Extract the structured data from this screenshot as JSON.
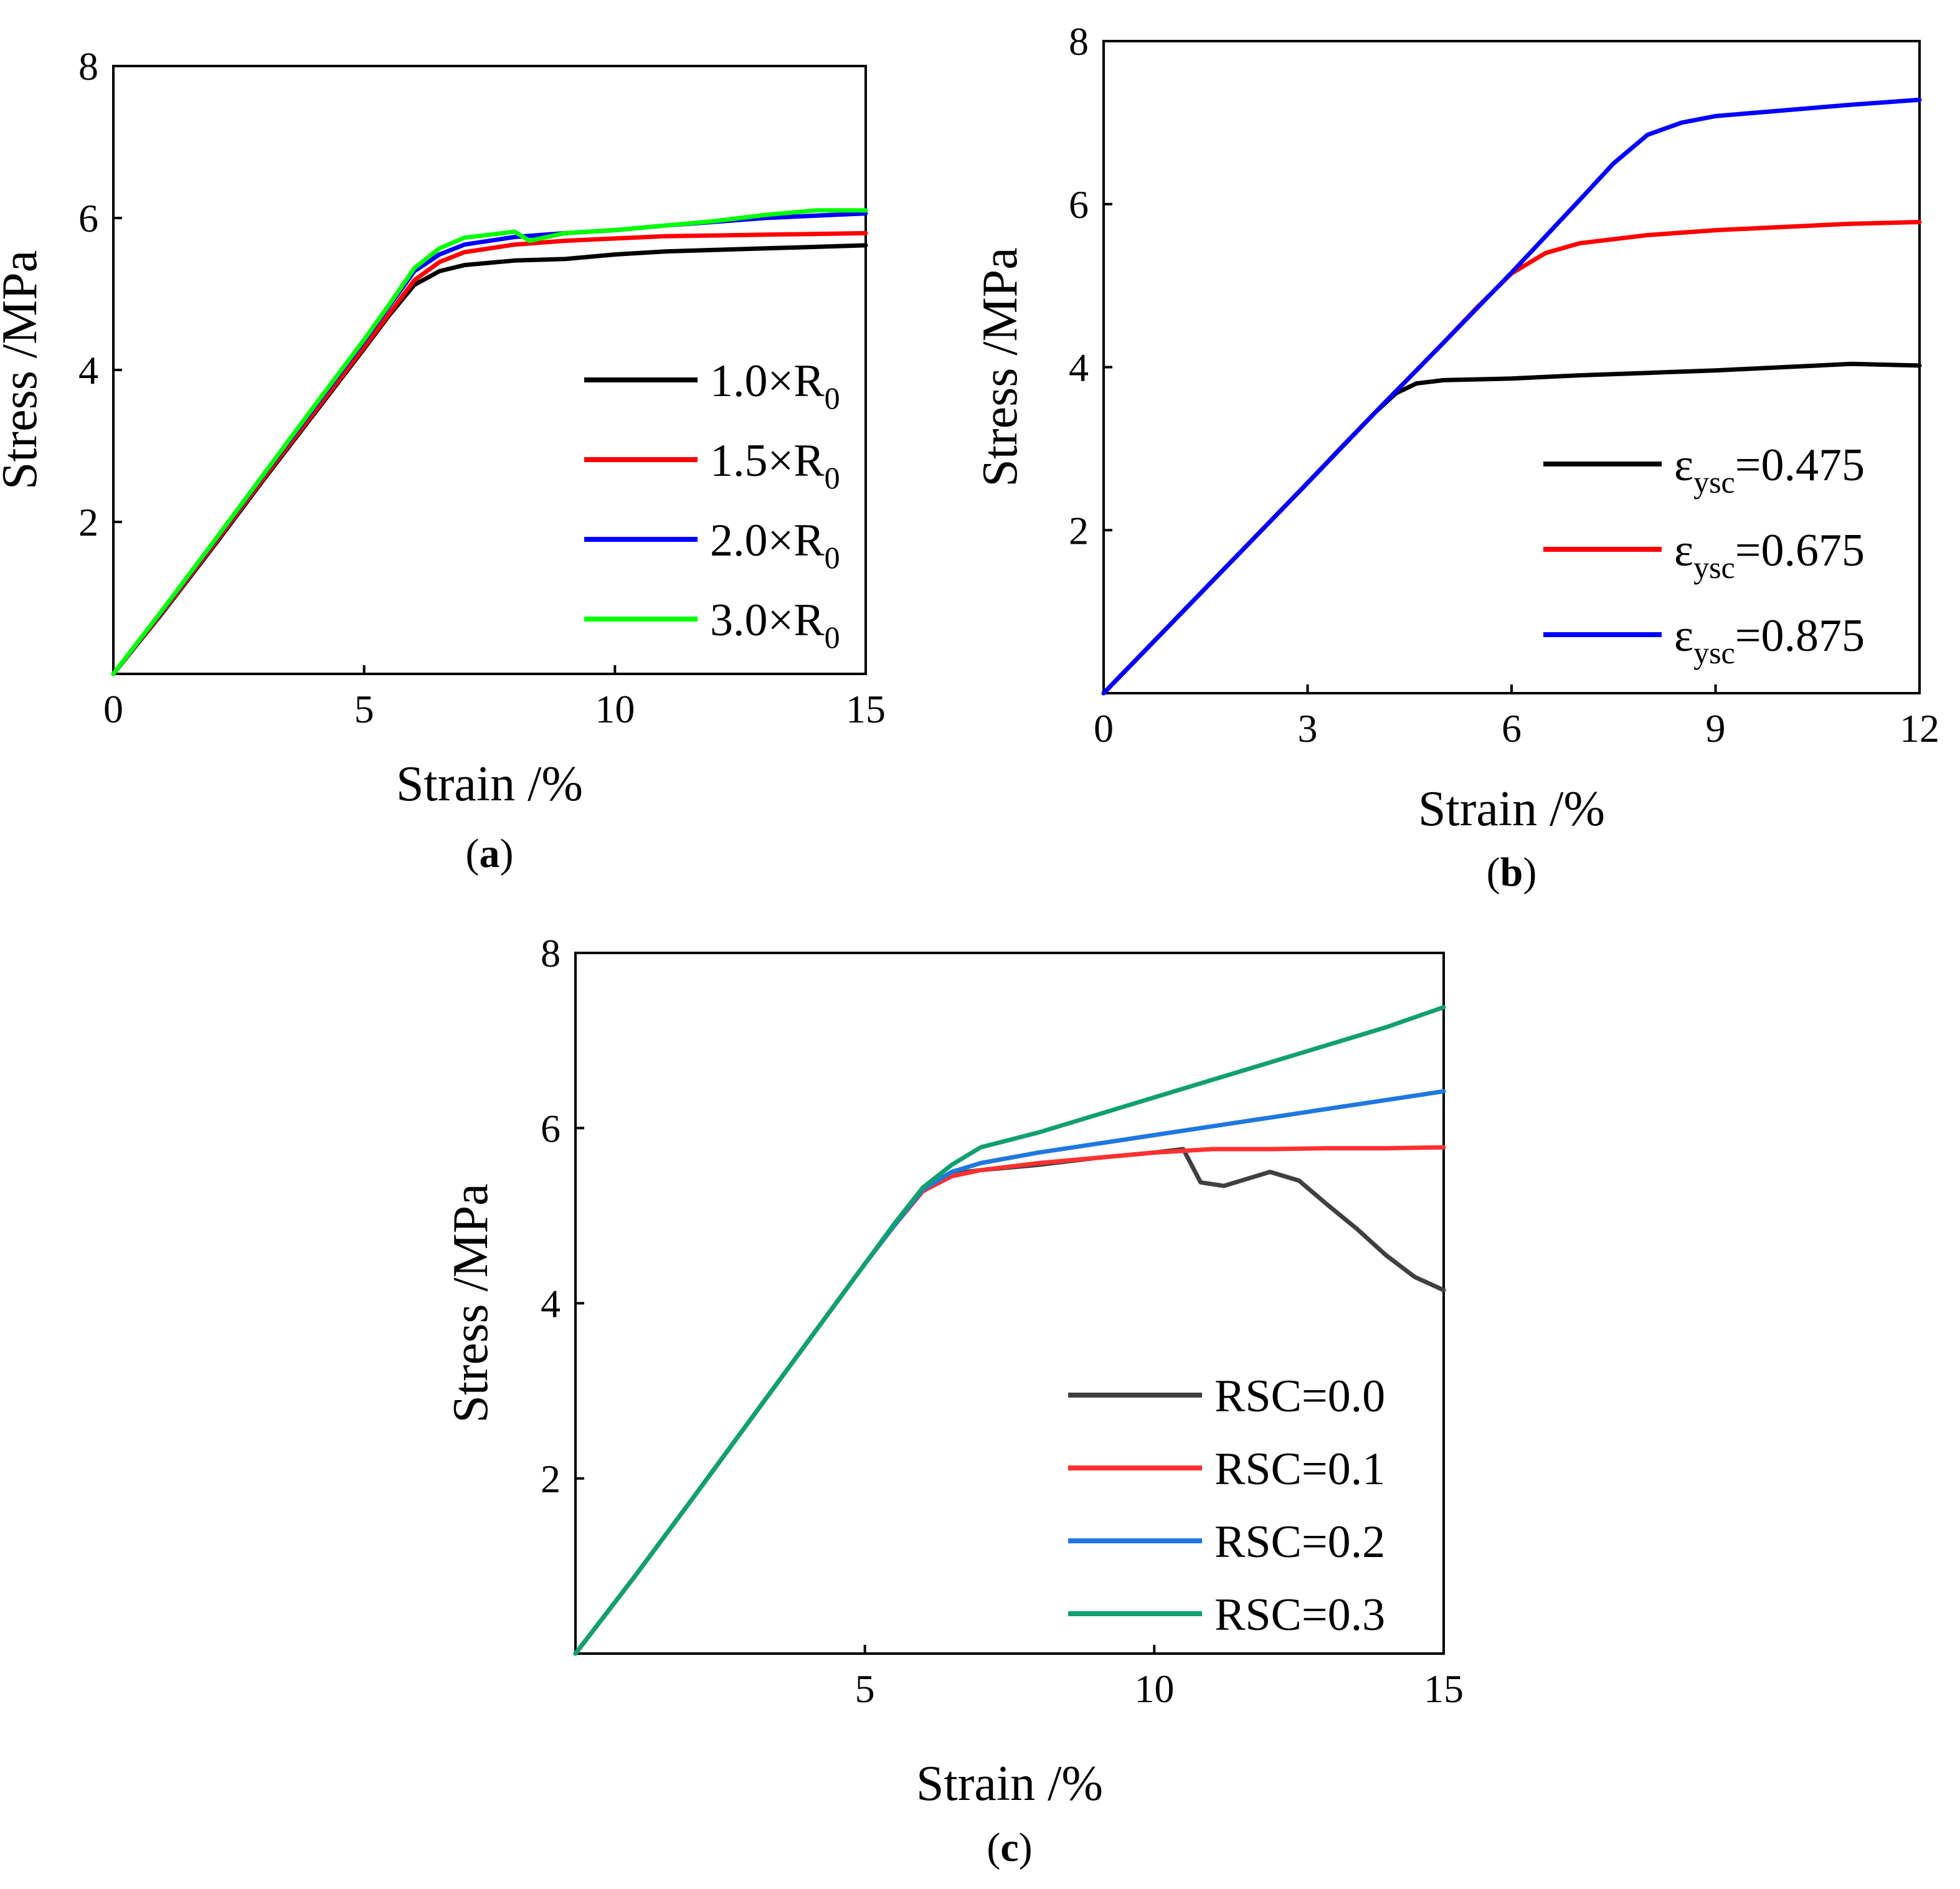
{
  "chart_data": [
    {
      "id": "a",
      "type": "line",
      "panel_label": "a",
      "xlabel": "Strain /%",
      "ylabel": "Stress /MPa",
      "xlim": [
        0,
        15
      ],
      "ylim": [
        0,
        8
      ],
      "xticks": [
        0,
        5,
        10,
        15
      ],
      "yticks": [
        2,
        4,
        6,
        8
      ],
      "legend_position": "bottom-right",
      "series": [
        {
          "name": "1.0×R",
          "sub": "0",
          "color": "#000000",
          "x": [
            0,
            1,
            2,
            3,
            4,
            5,
            5.5,
            6,
            6.5,
            7,
            8,
            9,
            10,
            11,
            12,
            13,
            14,
            15
          ],
          "y": [
            0,
            0.82,
            1.68,
            2.56,
            3.42,
            4.28,
            4.72,
            5.12,
            5.3,
            5.38,
            5.44,
            5.46,
            5.52,
            5.56,
            5.58,
            5.6,
            5.62,
            5.64
          ]
        },
        {
          "name": "1.5×R",
          "sub": "0",
          "color": "#ff0000",
          "x": [
            0,
            1,
            2,
            3,
            4,
            5,
            5.5,
            6,
            6.5,
            7,
            8,
            9,
            10,
            11,
            12,
            13,
            14,
            15
          ],
          "y": [
            0,
            0.83,
            1.7,
            2.58,
            3.44,
            4.3,
            4.74,
            5.18,
            5.42,
            5.55,
            5.65,
            5.7,
            5.73,
            5.76,
            5.77,
            5.78,
            5.79,
            5.8
          ]
        },
        {
          "name": "2.0×R",
          "sub": "0",
          "color": "#0000ff",
          "x": [
            0,
            1,
            2,
            3,
            4,
            5,
            5.5,
            6,
            6.5,
            7,
            8,
            9,
            10,
            11,
            12,
            13,
            14,
            15
          ],
          "y": [
            0,
            0.85,
            1.73,
            2.62,
            3.5,
            4.38,
            4.84,
            5.3,
            5.52,
            5.65,
            5.75,
            5.8,
            5.84,
            5.9,
            5.95,
            6.0,
            6.03,
            6.06
          ]
        },
        {
          "name": "3.0×R",
          "sub": "0",
          "color": "#00ff00",
          "x": [
            0,
            1,
            2,
            3,
            4,
            5,
            5.5,
            6,
            6.5,
            7,
            8,
            8.3,
            9,
            10,
            11,
            12,
            13,
            14,
            15
          ],
          "y": [
            0,
            0.86,
            1.74,
            2.63,
            3.52,
            4.4,
            4.86,
            5.34,
            5.6,
            5.74,
            5.82,
            5.7,
            5.8,
            5.84,
            5.9,
            5.96,
            6.04,
            6.1,
            6.1
          ]
        }
      ]
    },
    {
      "id": "b",
      "type": "line",
      "panel_label": "b",
      "xlabel": "Strain /%",
      "ylabel": "Stress /MPa",
      "xlim": [
        0,
        12
      ],
      "ylim": [
        0,
        8
      ],
      "xticks": [
        0,
        3,
        6,
        9,
        12
      ],
      "yticks": [
        2,
        4,
        6,
        8
      ],
      "legend_position": "bottom-right",
      "series": [
        {
          "name": "ε",
          "sub": "ysc",
          "suffix": "=0.475",
          "color": "#000000",
          "x": [
            0,
            1,
            2,
            3,
            3.5,
            4,
            4.3,
            4.6,
            5,
            6,
            7,
            8,
            9,
            10,
            11,
            12
          ],
          "y": [
            0,
            0.86,
            1.72,
            2.58,
            3.02,
            3.45,
            3.68,
            3.8,
            3.84,
            3.86,
            3.9,
            3.93,
            3.96,
            4.0,
            4.04,
            4.02
          ]
        },
        {
          "name": "ε",
          "sub": "ysc",
          "suffix": "=0.675",
          "color": "#ff0000",
          "x": [
            0,
            1,
            2,
            3,
            4,
            5,
            5.5,
            6,
            6.5,
            7,
            8,
            9,
            10,
            11,
            12
          ],
          "y": [
            0,
            0.86,
            1.72,
            2.58,
            3.45,
            4.3,
            4.74,
            5.15,
            5.4,
            5.52,
            5.62,
            5.68,
            5.72,
            5.76,
            5.78
          ]
        },
        {
          "name": "ε",
          "sub": "ysc",
          "suffix": "=0.875",
          "color": "#0000ff",
          "x": [
            0,
            1,
            2,
            3,
            4,
            5,
            6,
            7,
            7.5,
            8,
            8.5,
            9,
            10,
            11,
            12
          ],
          "y": [
            0,
            0.86,
            1.72,
            2.58,
            3.45,
            4.3,
            5.16,
            6.05,
            6.5,
            6.85,
            7.0,
            7.08,
            7.15,
            7.22,
            7.28
          ]
        }
      ]
    },
    {
      "id": "c",
      "type": "line",
      "panel_label": "c",
      "xlabel": "Strain /%",
      "ylabel": "Stress /MPa",
      "xlim": [
        0,
        15
      ],
      "ylim": [
        0,
        8
      ],
      "xticks": [
        5,
        10,
        15
      ],
      "yticks": [
        2,
        4,
        6,
        8
      ],
      "legend_position": "bottom-right",
      "series": [
        {
          "name": "RSC=0.0",
          "color": "#404040",
          "x": [
            0,
            1,
            2,
            3,
            4,
            5,
            5.5,
            6,
            6.5,
            7,
            8,
            9,
            10,
            10.5,
            10.8,
            11.2,
            12,
            12.5,
            13,
            13.5,
            14,
            14.5,
            15
          ],
          "y": [
            0,
            0.86,
            1.75,
            2.65,
            3.55,
            4.45,
            4.88,
            5.28,
            5.48,
            5.52,
            5.58,
            5.66,
            5.72,
            5.76,
            5.38,
            5.34,
            5.5,
            5.4,
            5.12,
            4.85,
            4.55,
            4.3,
            4.15
          ]
        },
        {
          "name": "RSC=0.1",
          "color": "#ff3030",
          "x": [
            0,
            1,
            2,
            3,
            4,
            5,
            5.5,
            6,
            6.5,
            7,
            8,
            9,
            10,
            11,
            12,
            13,
            14,
            15
          ],
          "y": [
            0,
            0.86,
            1.75,
            2.65,
            3.55,
            4.45,
            4.88,
            5.28,
            5.45,
            5.52,
            5.6,
            5.66,
            5.72,
            5.76,
            5.76,
            5.77,
            5.77,
            5.78
          ]
        },
        {
          "name": "RSC=0.2",
          "color": "#1e78e0",
          "x": [
            0,
            1,
            2,
            3,
            4,
            5,
            5.5,
            6,
            6.5,
            7,
            8,
            9,
            10,
            11,
            12,
            13,
            14,
            15
          ],
          "y": [
            0,
            0.86,
            1.75,
            2.65,
            3.55,
            4.45,
            4.88,
            5.3,
            5.5,
            5.6,
            5.72,
            5.82,
            5.92,
            6.02,
            6.12,
            6.22,
            6.32,
            6.42
          ]
        },
        {
          "name": "RSC=0.3",
          "color": "#11a070",
          "x": [
            0,
            1,
            2,
            3,
            4,
            5,
            5.5,
            6,
            6.5,
            7,
            8,
            9,
            10,
            11,
            12,
            13,
            14,
            15
          ],
          "y": [
            0,
            0.86,
            1.75,
            2.65,
            3.55,
            4.45,
            4.9,
            5.32,
            5.58,
            5.78,
            5.95,
            6.15,
            6.35,
            6.55,
            6.75,
            6.95,
            7.15,
            7.38
          ]
        }
      ]
    }
  ]
}
